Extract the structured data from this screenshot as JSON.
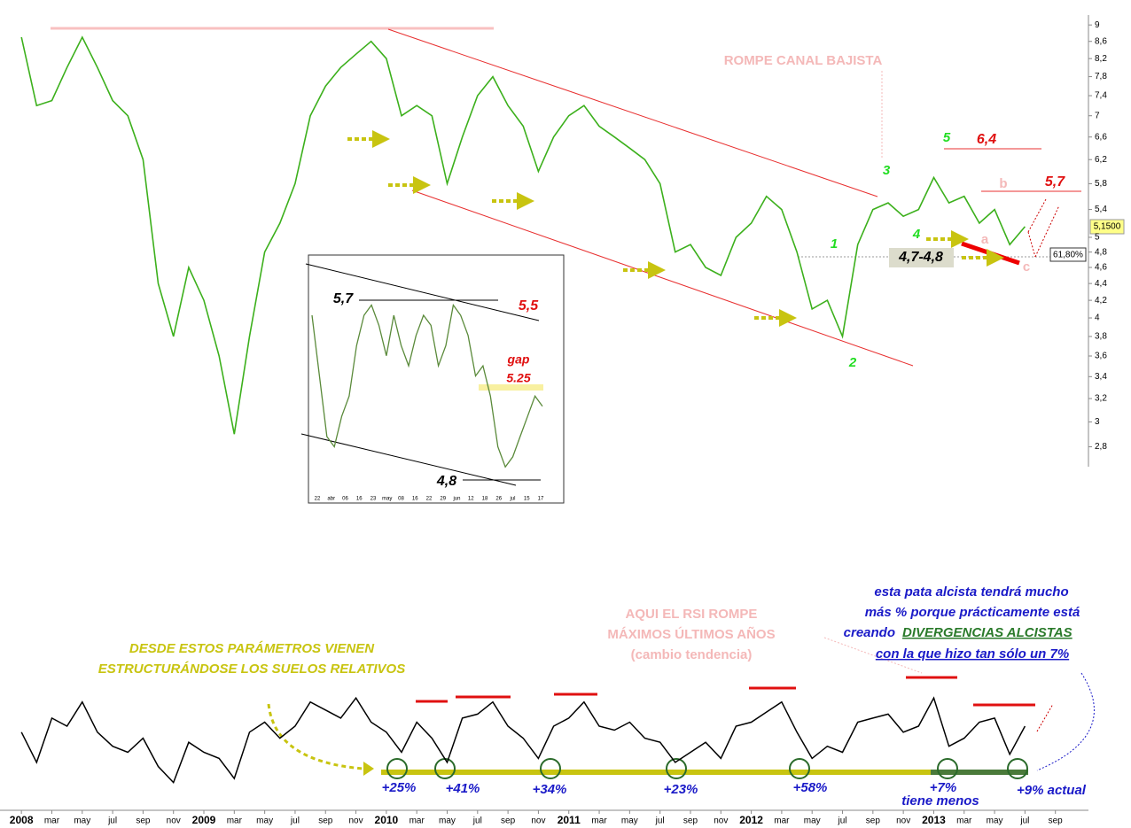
{
  "chart_data": {
    "type": "line",
    "color": "#3cb01c",
    "log_scale": true,
    "x": [
      "2008-01",
      "2008-02",
      "2008-03",
      "2008-04",
      "2008-05",
      "2008-06",
      "2008-07",
      "2008-08",
      "2008-09",
      "2008-10",
      "2008-11",
      "2008-12",
      "2009-01",
      "2009-02",
      "2009-03",
      "2009-04",
      "2009-05",
      "2009-06",
      "2009-07",
      "2009-08",
      "2009-09",
      "2009-10",
      "2009-11",
      "2009-12",
      "2010-01",
      "2010-02",
      "2010-03",
      "2010-04",
      "2010-05",
      "2010-06",
      "2010-07",
      "2010-08",
      "2010-09",
      "2010-10",
      "2010-11",
      "2010-12",
      "2011-01",
      "2011-02",
      "2011-03",
      "2011-04",
      "2011-05",
      "2011-06",
      "2011-07",
      "2011-08",
      "2011-09",
      "2011-10",
      "2011-11",
      "2011-12",
      "2012-01",
      "2012-02",
      "2012-03",
      "2012-04",
      "2012-05",
      "2012-06",
      "2012-07",
      "2012-08",
      "2012-09",
      "2012-10",
      "2012-11",
      "2012-12",
      "2013-01",
      "2013-02",
      "2013-03",
      "2013-04",
      "2013-05",
      "2013-06",
      "2013-07"
    ],
    "values": [
      8.7,
      7.2,
      7.3,
      8.0,
      8.7,
      8.0,
      7.3,
      7.0,
      6.2,
      4.4,
      3.8,
      4.6,
      4.2,
      3.6,
      2.9,
      3.8,
      4.8,
      5.2,
      5.8,
      7.0,
      7.6,
      8.0,
      8.3,
      8.6,
      8.2,
      7.0,
      7.2,
      7.0,
      5.8,
      6.6,
      7.4,
      7.8,
      7.2,
      6.8,
      6.0,
      6.6,
      7.0,
      7.2,
      6.8,
      6.6,
      6.4,
      6.2,
      5.8,
      4.8,
      4.9,
      4.6,
      4.5,
      5.0,
      5.2,
      5.6,
      5.4,
      4.8,
      4.1,
      4.2,
      3.8,
      4.9,
      5.4,
      5.5,
      5.3,
      5.4,
      5.9,
      5.5,
      5.6,
      5.2,
      5.4,
      4.9,
      5.15
    ],
    "rsi": {
      "color": "#000000",
      "ylim": [
        25,
        80
      ],
      "values": [
        55,
        40,
        62,
        58,
        70,
        55,
        48,
        45,
        52,
        38,
        30,
        50,
        45,
        42,
        32,
        55,
        60,
        52,
        58,
        70,
        66,
        62,
        72,
        60,
        55,
        45,
        60,
        52,
        40,
        62,
        64,
        70,
        58,
        52,
        42,
        58,
        62,
        70,
        58,
        56,
        60,
        52,
        50,
        40,
        45,
        50,
        42,
        58,
        60,
        65,
        70,
        55,
        42,
        48,
        45,
        60,
        62,
        64,
        55,
        58,
        72,
        48,
        52,
        60,
        62,
        44,
        58
      ]
    },
    "xlim": [
      "2007-12",
      "2013-11"
    ],
    "xticks": [
      {
        "value": "2008-01",
        "label": "2008"
      },
      {
        "value": "2008-03",
        "label": "mar"
      },
      {
        "value": "2008-05",
        "label": "may"
      },
      {
        "value": "2008-07",
        "label": "jul"
      },
      {
        "value": "2008-09",
        "label": "sep"
      },
      {
        "value": "2008-11",
        "label": "nov"
      },
      {
        "value": "2009-01",
        "label": "2009"
      },
      {
        "value": "2009-03",
        "label": "mar"
      },
      {
        "value": "2009-05",
        "label": "may"
      },
      {
        "value": "2009-07",
        "label": "jul"
      },
      {
        "value": "2009-09",
        "label": "sep"
      },
      {
        "value": "2009-11",
        "label": "nov"
      },
      {
        "value": "2010-01",
        "label": "2010"
      },
      {
        "value": "2010-03",
        "label": "mar"
      },
      {
        "value": "2010-05",
        "label": "may"
      },
      {
        "value": "2010-07",
        "label": "jul"
      },
      {
        "value": "2010-09",
        "label": "sep"
      },
      {
        "value": "2010-11",
        "label": "nov"
      },
      {
        "value": "2011-01",
        "label": "2011"
      },
      {
        "value": "2011-03",
        "label": "mar"
      },
      {
        "value": "2011-05",
        "label": "may"
      },
      {
        "value": "2011-07",
        "label": "jul"
      },
      {
        "value": "2011-09",
        "label": "sep"
      },
      {
        "value": "2011-11",
        "label": "nov"
      },
      {
        "value": "2012-01",
        "label": "2012"
      },
      {
        "value": "2012-03",
        "label": "mar"
      },
      {
        "value": "2012-05",
        "label": "may"
      },
      {
        "value": "2012-07",
        "label": "jul"
      },
      {
        "value": "2012-09",
        "label": "sep"
      },
      {
        "value": "2012-11",
        "label": "nov"
      },
      {
        "value": "2013-01",
        "label": "2013"
      },
      {
        "value": "2013-03",
        "label": "mar"
      },
      {
        "value": "2013-05",
        "label": "may"
      },
      {
        "value": "2013-07",
        "label": "jul"
      },
      {
        "value": "2013-09",
        "label": "sep"
      }
    ],
    "ylim": [
      2.65,
      9.25
    ],
    "yticks": [
      9,
      {
        "value": 8.6,
        "label": "8,6"
      },
      {
        "value": 8.2,
        "label": "8,2"
      },
      {
        "value": 7.8,
        "label": "7,8"
      },
      {
        "value": 7.4,
        "label": "7,4"
      },
      7,
      {
        "value": 6.6,
        "label": "6,6"
      },
      {
        "value": 6.2,
        "label": "6,2"
      },
      {
        "value": 5.8,
        "label": "5,8"
      },
      {
        "value": 5.4,
        "label": "5,4"
      },
      5,
      {
        "value": 4.8,
        "label": "4,8"
      },
      {
        "value": 4.6,
        "label": "4,6"
      },
      {
        "value": 4.4,
        "label": "4,4"
      },
      {
        "value": 4.2,
        "label": "4,2"
      },
      4,
      {
        "value": 3.8,
        "label": "3,8"
      },
      {
        "value": 3.6,
        "label": "3,6"
      },
      {
        "value": 3.4,
        "label": "3,4"
      },
      {
        "value": 3.2,
        "label": "3,2"
      },
      3,
      {
        "value": 2.8,
        "label": "2,8"
      }
    ],
    "annotations": [
      "ROMPE CANAL BAJISTA",
      "5",
      "6,4",
      "3",
      "b",
      "5,7",
      "4",
      "a",
      "1",
      "4,7-4,8",
      "c",
      "2",
      "5,1500",
      "61,80%",
      "DESDE ESTOS PARÁMETROS VIENEN",
      "ESTRUCTURÁNDOSE LOS SUELOS RELATIVOS",
      "AQUI EL RSI ROMPE",
      "MÁXIMOS ÚLTIMOS AÑOS",
      "(cambio tendencia)",
      "esta pata alcista tendrá mucho",
      "más % porque prácticamente está",
      "creando",
      "DIVERGENCIAS ALCISTAS",
      "con la que hizo tan sólo un 7%",
      "+25%",
      "+41%",
      "+34%",
      "+23%",
      "+58%",
      "+7%",
      "tiene menos",
      "+9% actual"
    ],
    "inset": {
      "color": "#5a8a3a",
      "ylim": [
        4.72,
        5.88
      ],
      "values": [
        5.6,
        5.3,
        5.0,
        4.95,
        5.1,
        5.2,
        5.45,
        5.6,
        5.65,
        5.55,
        5.4,
        5.6,
        5.45,
        5.35,
        5.5,
        5.6,
        5.55,
        5.35,
        5.45,
        5.65,
        5.6,
        5.5,
        5.3,
        5.35,
        5.2,
        4.95,
        4.85,
        4.9,
        5.0,
        5.1,
        5.2,
        5.15
      ],
      "annotations": [
        "5,7",
        "5,5",
        "gap",
        "5.25",
        "4,8"
      ],
      "xlabels": [
        "22",
        "abr",
        "06",
        "16",
        "23",
        "may",
        "08",
        "16",
        "22",
        "29",
        "jun",
        "12",
        "18",
        "26",
        "jul",
        "15",
        "17"
      ]
    }
  }
}
